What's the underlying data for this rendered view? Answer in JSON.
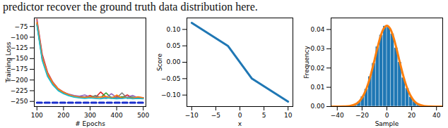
{
  "text": "predictor recover the ground truth data distribution here.",
  "chart_data": [
    {
      "type": "line",
      "x_label": "# Epochs",
      "y_label": "Training Loss",
      "x": [
        100,
        120,
        140,
        160,
        180,
        200,
        220,
        240,
        260,
        280,
        300,
        320,
        340,
        360,
        380,
        400,
        420,
        440,
        460,
        480,
        500
      ],
      "xlim": [
        90,
        510
      ],
      "xticks": [
        100,
        200,
        300,
        400,
        500
      ],
      "ylim": [
        -262,
        -55
      ],
      "yticks": [
        {
          "value": -75,
          "label": "−75"
        },
        {
          "value": -100,
          "label": "−100"
        },
        {
          "value": -125,
          "label": "−125"
        },
        {
          "value": -150,
          "label": "−150"
        },
        {
          "value": -175,
          "label": "−175"
        },
        {
          "value": -200,
          "label": "−200"
        },
        {
          "value": -225,
          "label": "−225"
        },
        {
          "value": -250,
          "label": "−250"
        }
      ],
      "series": [
        {
          "color": "#d62728",
          "values": [
            -58,
            -140,
            -182,
            -205,
            -220,
            -228,
            -234,
            -237,
            -239,
            -240,
            -236,
            -241,
            -228,
            -240,
            -242,
            -238,
            -241,
            -235,
            -242,
            -240,
            -241
          ]
        },
        {
          "color": "#2ca02c",
          "values": [
            -68,
            -150,
            -188,
            -208,
            -222,
            -230,
            -235,
            -238,
            -240,
            -241,
            -240,
            -237,
            -241,
            -230,
            -242,
            -241,
            -239,
            -242,
            -240,
            -243,
            -242
          ]
        },
        {
          "color": "#9467bd",
          "values": [
            -62,
            -145,
            -185,
            -206,
            -221,
            -229,
            -233,
            -236,
            -238,
            -235,
            -240,
            -241,
            -239,
            -242,
            -232,
            -241,
            -243,
            -240,
            -236,
            -242,
            -241
          ]
        },
        {
          "color": "#7f7f7f",
          "values": [
            -70,
            -152,
            -190,
            -210,
            -223,
            -231,
            -236,
            -239,
            -241,
            -240,
            -242,
            -236,
            -241,
            -243,
            -240,
            -242,
            -230,
            -243,
            -241,
            -242,
            -243
          ]
        },
        {
          "color": "#ff7f0e",
          "values": [
            -65,
            -148,
            -186,
            -207,
            -221,
            -229,
            -234,
            -238,
            -240,
            -241,
            -239,
            -242,
            -240,
            -238,
            -243,
            -235,
            -242,
            -241,
            -243,
            -239,
            -242
          ]
        },
        {
          "color": "#17becf",
          "values": [
            -72,
            -155,
            -192,
            -212,
            -225,
            -232,
            -237,
            -240,
            -242,
            -243,
            -242,
            -243,
            -244,
            -242,
            -243,
            -244,
            -243,
            -242,
            -244,
            -243,
            -244
          ]
        },
        {
          "color": "#1a2ecc",
          "line_style": "dashed",
          "values": [
            -253,
            -253,
            -253,
            -253,
            -253,
            -253,
            -253,
            -253,
            -253,
            -253,
            -253,
            -253,
            -253,
            -253,
            -253,
            -253,
            -253,
            -253,
            -253,
            -253,
            -253
          ]
        }
      ]
    },
    {
      "type": "line",
      "x_label": "x",
      "y_label": "Score",
      "x": [
        -10,
        -2.5,
        2.5,
        10
      ],
      "values": [
        0.12,
        0.05,
        -0.05,
        -0.12
      ],
      "color": "#1f77b4",
      "xlim": [
        -11,
        11
      ],
      "xticks": [
        {
          "value": -10,
          "label": "−10"
        },
        {
          "value": -5,
          "label": "−5"
        },
        0,
        5,
        10
      ],
      "ylim": [
        -0.135,
        0.135
      ],
      "yticks": [
        {
          "value": -0.1,
          "label": "−0.10"
        },
        {
          "value": -0.05,
          "label": "−0.05"
        },
        {
          "value": 0,
          "label": "0.00"
        },
        {
          "value": 0.05,
          "label": "0.05"
        },
        {
          "value": 0.1,
          "label": "0.10"
        }
      ]
    },
    {
      "type": "histogram",
      "x_label": "Sample",
      "y_label": "Frequency",
      "bins": [
        -30,
        -27,
        -24,
        -21,
        -18,
        -15,
        -12,
        -9,
        -6,
        -3,
        0,
        3,
        6,
        9,
        12,
        15,
        18,
        21,
        24,
        27,
        30
      ],
      "values": [
        0.0005,
        0.0012,
        0.0024,
        0.0052,
        0.0091,
        0.0156,
        0.0225,
        0.0311,
        0.0372,
        0.0418,
        0.0413,
        0.0378,
        0.0305,
        0.0231,
        0.015,
        0.0095,
        0.005,
        0.0026,
        0.001,
        0.0005
      ],
      "color": "#1f77b4",
      "curve": {
        "color": "#ff7f0e",
        "x": [
          -45,
          -35,
          -30,
          -25,
          -22.5,
          -20,
          -17.5,
          -15,
          -12.5,
          -10,
          -7.5,
          -5,
          -2.5,
          0,
          2.5,
          5,
          7.5,
          10,
          12.5,
          15,
          17.5,
          20,
          22.5,
          25,
          30,
          35,
          45
        ],
        "values": [
          0,
          0.0001,
          0.0003,
          0.0013,
          0.0025,
          0.0046,
          0.0077,
          0.0121,
          0.0177,
          0.0241,
          0.0308,
          0.0366,
          0.0406,
          0.042,
          0.0406,
          0.0366,
          0.0308,
          0.0241,
          0.0177,
          0.0121,
          0.0077,
          0.0046,
          0.0025,
          0.0013,
          0.0003,
          0.0001,
          0
        ]
      },
      "xlim": [
        -45,
        45
      ],
      "xticks": [
        {
          "value": -40,
          "label": "−40"
        },
        {
          "value": -20,
          "label": "−20"
        },
        0,
        20,
        40
      ],
      "ylim": [
        0,
        0.046
      ],
      "yticks": [
        {
          "value": 0,
          "label": "0.00"
        },
        {
          "value": 0.01,
          "label": "0.01"
        },
        {
          "value": 0.02,
          "label": "0.02"
        },
        {
          "value": 0.03,
          "label": "0.03"
        },
        {
          "value": 0.04,
          "label": "0.04"
        }
      ]
    }
  ]
}
